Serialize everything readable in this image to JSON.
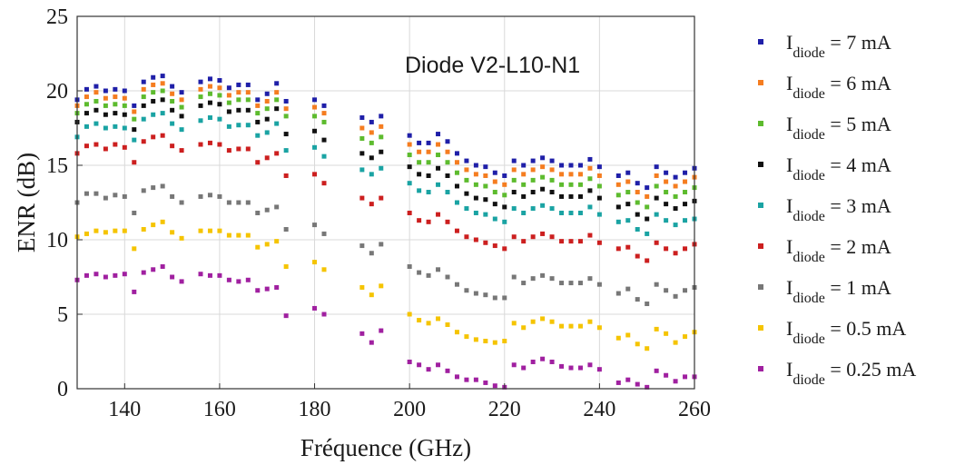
{
  "chart_data": {
    "type": "scatter",
    "title": "",
    "xlabel": "Fréquence (GHz)",
    "ylabel": "ENR (dB)",
    "xlim": [
      130,
      260
    ],
    "ylim": [
      0,
      25
    ],
    "xticks": [
      140,
      160,
      180,
      200,
      220,
      240,
      260
    ],
    "yticks": [
      0,
      5,
      10,
      15,
      20,
      25
    ],
    "grid": true,
    "legend_position": "right-outside",
    "annotation": "Diode V2-L10-N1",
    "x": [
      130,
      132,
      134,
      136,
      138,
      140,
      142,
      144,
      146,
      148,
      150,
      152,
      156,
      158,
      160,
      162,
      164,
      166,
      168,
      170,
      172,
      174,
      180,
      182,
      190,
      192,
      194,
      200,
      202,
      204,
      206,
      208,
      210,
      212,
      214,
      216,
      218,
      220,
      222,
      224,
      226,
      228,
      230,
      232,
      234,
      236,
      238,
      240,
      244,
      246,
      248,
      250,
      252,
      254,
      256,
      258,
      260
    ],
    "series": [
      {
        "name": "I",
        "sub": "diode",
        "suffix": " = 7 mA",
        "color": "#1f1fa8",
        "values": [
          19.4,
          20.1,
          20.3,
          20.0,
          20.1,
          20.0,
          19.0,
          20.6,
          20.9,
          21.0,
          20.3,
          19.9,
          20.6,
          20.8,
          20.7,
          20.2,
          20.4,
          20.4,
          19.4,
          19.8,
          20.5,
          19.3,
          19.4,
          19.0,
          18.2,
          17.9,
          18.3,
          17.0,
          16.5,
          16.5,
          17.1,
          16.6,
          15.8,
          15.3,
          15.0,
          14.9,
          14.5,
          14.3,
          15.3,
          15.0,
          15.3,
          15.5,
          15.3,
          15.0,
          15.0,
          15.0,
          15.4,
          14.9,
          14.3,
          14.5,
          13.8,
          13.5,
          14.9,
          14.5,
          14.2,
          14.5,
          14.8
        ]
      },
      {
        "name": "I",
        "sub": "diode",
        "suffix": " = 6 mA",
        "color": "#f57d20",
        "values": [
          19.0,
          19.6,
          19.9,
          19.5,
          19.6,
          19.5,
          18.6,
          20.1,
          20.4,
          20.5,
          19.8,
          19.4,
          20.1,
          20.3,
          20.2,
          19.7,
          19.9,
          19.9,
          19.0,
          19.3,
          19.9,
          18.8,
          18.9,
          18.5,
          17.5,
          17.2,
          17.6,
          16.4,
          15.9,
          15.9,
          16.4,
          15.9,
          15.2,
          14.7,
          14.4,
          14.3,
          13.9,
          13.7,
          14.7,
          14.4,
          14.7,
          14.9,
          14.7,
          14.4,
          14.4,
          14.4,
          14.8,
          14.3,
          13.7,
          13.9,
          13.2,
          12.9,
          14.3,
          13.9,
          13.6,
          13.9,
          14.2
        ]
      },
      {
        "name": "I",
        "sub": "diode",
        "suffix": " = 5 mA",
        "color": "#5dbb2e",
        "values": [
          18.5,
          19.1,
          19.3,
          19.0,
          19.1,
          19.0,
          18.1,
          19.6,
          19.9,
          20.0,
          19.3,
          18.9,
          19.6,
          19.8,
          19.7,
          19.2,
          19.4,
          19.4,
          18.5,
          18.8,
          19.4,
          18.3,
          18.3,
          17.9,
          16.8,
          16.5,
          16.9,
          15.7,
          15.2,
          15.2,
          15.7,
          15.2,
          14.5,
          14.0,
          13.7,
          13.6,
          13.2,
          13.0,
          14.0,
          13.7,
          14.0,
          14.2,
          14.0,
          13.7,
          13.7,
          13.7,
          14.1,
          13.6,
          13.0,
          13.2,
          12.5,
          12.2,
          13.6,
          13.2,
          12.9,
          13.2,
          13.5
        ]
      },
      {
        "name": "I",
        "sub": "diode",
        "suffix": " = 4 mA",
        "color": "#111111",
        "values": [
          17.9,
          18.5,
          18.7,
          18.4,
          18.5,
          18.4,
          17.4,
          19.0,
          19.3,
          19.4,
          18.7,
          18.3,
          19.0,
          19.2,
          19.1,
          18.6,
          18.7,
          18.7,
          17.9,
          18.1,
          18.8,
          17.1,
          17.3,
          16.7,
          15.8,
          15.5,
          15.9,
          14.9,
          14.4,
          14.3,
          14.8,
          14.3,
          13.6,
          13.1,
          12.8,
          12.7,
          12.4,
          12.2,
          13.2,
          12.9,
          13.2,
          13.4,
          13.2,
          12.9,
          12.9,
          12.9,
          13.3,
          12.8,
          12.2,
          12.4,
          11.7,
          11.4,
          12.8,
          12.4,
          12.1,
          12.4,
          12.6
        ]
      },
      {
        "name": "I",
        "sub": "diode",
        "suffix": " = 3 mA",
        "color": "#1aa3a3",
        "values": [
          16.9,
          17.6,
          17.8,
          17.5,
          17.6,
          17.5,
          16.7,
          18.1,
          18.4,
          18.5,
          17.8,
          17.4,
          18.0,
          18.2,
          18.1,
          17.6,
          17.7,
          17.7,
          17.0,
          17.2,
          17.8,
          16.0,
          16.2,
          15.6,
          14.7,
          14.4,
          14.8,
          13.8,
          13.3,
          13.2,
          13.7,
          13.2,
          12.5,
          12.1,
          11.8,
          11.7,
          11.4,
          11.2,
          12.1,
          11.8,
          12.1,
          12.3,
          12.1,
          11.8,
          11.8,
          11.8,
          12.2,
          11.7,
          11.2,
          11.3,
          10.7,
          10.4,
          11.7,
          11.3,
          11.0,
          11.3,
          11.4
        ]
      },
      {
        "name": "I",
        "sub": "diode",
        "suffix": " = 2 mA",
        "color": "#cc1f1f",
        "values": [
          15.8,
          16.3,
          16.4,
          16.1,
          16.4,
          16.2,
          15.2,
          16.6,
          16.9,
          17.0,
          16.3,
          16.0,
          16.4,
          16.5,
          16.4,
          16.0,
          16.1,
          16.1,
          15.2,
          15.5,
          15.8,
          14.3,
          14.4,
          13.8,
          12.8,
          12.4,
          12.8,
          11.8,
          11.3,
          11.2,
          11.7,
          11.2,
          10.6,
          10.2,
          10.0,
          9.8,
          9.6,
          9.4,
          10.2,
          9.9,
          10.2,
          10.4,
          10.2,
          9.9,
          9.9,
          9.9,
          10.3,
          9.8,
          9.4,
          9.5,
          8.9,
          8.6,
          9.8,
          9.4,
          9.1,
          9.4,
          9.7
        ]
      },
      {
        "name": "I",
        "sub": "diode",
        "suffix": " = 1 mA",
        "color": "#777777",
        "values": [
          12.5,
          13.1,
          13.1,
          12.8,
          13.0,
          12.9,
          11.8,
          13.3,
          13.5,
          13.6,
          12.9,
          12.5,
          12.9,
          13.0,
          12.9,
          12.5,
          12.5,
          12.5,
          11.8,
          12.0,
          12.2,
          10.7,
          11.0,
          10.4,
          9.6,
          9.1,
          9.7,
          8.2,
          7.8,
          7.6,
          8.0,
          7.5,
          7.0,
          6.6,
          6.4,
          6.3,
          6.1,
          6.1,
          7.5,
          7.1,
          7.4,
          7.6,
          7.4,
          7.1,
          7.1,
          7.1,
          7.4,
          7.0,
          6.4,
          6.7,
          6.0,
          5.7,
          7.0,
          6.6,
          6.2,
          6.6,
          6.8
        ]
      },
      {
        "name": "I",
        "sub": "diode",
        "suffix": " = 0.5 mA",
        "color": "#f5c400",
        "values": [
          10.2,
          10.4,
          10.6,
          10.5,
          10.6,
          10.6,
          9.4,
          10.7,
          11.0,
          11.2,
          10.5,
          10.1,
          10.6,
          10.6,
          10.6,
          10.3,
          10.3,
          10.3,
          9.5,
          9.7,
          9.9,
          8.2,
          8.5,
          8.0,
          6.8,
          6.3,
          6.9,
          5.0,
          4.6,
          4.4,
          4.7,
          4.3,
          3.8,
          3.5,
          3.3,
          3.2,
          3.1,
          3.2,
          4.4,
          4.1,
          4.5,
          4.7,
          4.5,
          4.2,
          4.2,
          4.2,
          4.5,
          4.1,
          3.4,
          3.6,
          3.0,
          2.7,
          4.0,
          3.7,
          3.1,
          3.5,
          3.8
        ]
      },
      {
        "name": "I",
        "sub": "diode",
        "suffix": " = 0.25 mA",
        "color": "#a020a0",
        "values": [
          7.3,
          7.6,
          7.7,
          7.5,
          7.6,
          7.7,
          6.5,
          7.8,
          8.0,
          8.2,
          7.5,
          7.2,
          7.7,
          7.6,
          7.6,
          7.3,
          7.2,
          7.3,
          6.6,
          6.7,
          6.8,
          4.9,
          5.4,
          5.0,
          3.7,
          3.1,
          3.9,
          1.8,
          1.6,
          1.3,
          1.6,
          1.2,
          0.8,
          0.6,
          0.6,
          0.4,
          0.2,
          0.1,
          1.6,
          1.4,
          1.8,
          2.0,
          1.8,
          1.5,
          1.4,
          1.4,
          1.6,
          1.3,
          0.4,
          0.6,
          0.3,
          0.1,
          1.2,
          0.9,
          0.5,
          0.8,
          0.8
        ]
      }
    ]
  }
}
